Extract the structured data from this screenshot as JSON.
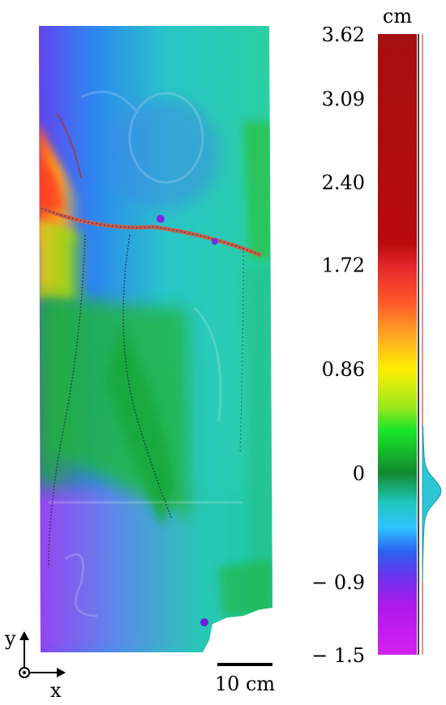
{
  "chart_data": {
    "type": "heatmap",
    "title": "",
    "colorbar": {
      "unit": "cm",
      "range": [
        -1.5,
        3.62
      ],
      "tick_labels": [
        "3.62",
        "3.09",
        "2.40",
        "1.72",
        "0.86",
        "0",
        "− 0.9",
        "− 1.5"
      ],
      "tick_values": [
        3.62,
        3.09,
        2.4,
        1.72,
        0.86,
        0,
        -0.9,
        -1.5
      ],
      "color_stops": [
        {
          "value": 3.62,
          "color": "#a50f0f"
        },
        {
          "value": 1.9,
          "color": "#b80a0a"
        },
        {
          "value": 1.7,
          "color": "#e6262a"
        },
        {
          "value": 1.4,
          "color": "#ff5a2a"
        },
        {
          "value": 1.1,
          "color": "#ffb020"
        },
        {
          "value": 0.86,
          "color": "#ffee00"
        },
        {
          "value": 0.55,
          "color": "#9ee81c"
        },
        {
          "value": 0.35,
          "color": "#19e628"
        },
        {
          "value": 0.0,
          "color": "#128a2e"
        },
        {
          "value": -0.25,
          "color": "#20c7c0"
        },
        {
          "value": -0.45,
          "color": "#2fc3ff"
        },
        {
          "value": -0.65,
          "color": "#2a62f0"
        },
        {
          "value": -0.85,
          "color": "#6833ee"
        },
        {
          "value": -1.1,
          "color": "#b018ec"
        },
        {
          "value": -1.5,
          "color": "#d321f0"
        }
      ],
      "histogram_peak": -0.15
    },
    "axes": {
      "x": "x",
      "y": "y"
    },
    "scale_bar": "10 cm"
  }
}
